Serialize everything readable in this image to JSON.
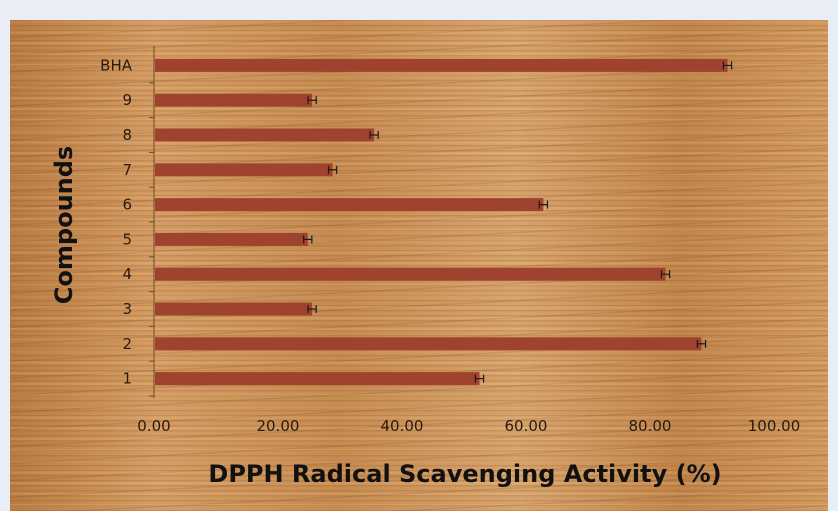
{
  "chart_data": {
    "type": "bar",
    "orientation": "horizontal",
    "categories": [
      "1",
      "2",
      "3",
      "4",
      "5",
      "6",
      "7",
      "8",
      "9",
      "BHA"
    ],
    "values": [
      52.5,
      88.3,
      25.5,
      82.5,
      24.8,
      62.8,
      28.8,
      35.5,
      25.5,
      92.5
    ],
    "errors": [
      0.5,
      0.5,
      0.5,
      0.5,
      0.5,
      0.5,
      0.5,
      0.5,
      0.5,
      0.5
    ],
    "xlabel": "DPPH Radical Scavenging Activity (%)",
    "ylabel": "Compounds",
    "xlim": [
      0,
      100
    ],
    "x_ticks": [
      "0.00",
      "20.00",
      "40.00",
      "60.00",
      "80.00",
      "100.00"
    ],
    "grid": false,
    "legend": "none",
    "bar_color": "#a0432e",
    "background": "wood texture"
  }
}
